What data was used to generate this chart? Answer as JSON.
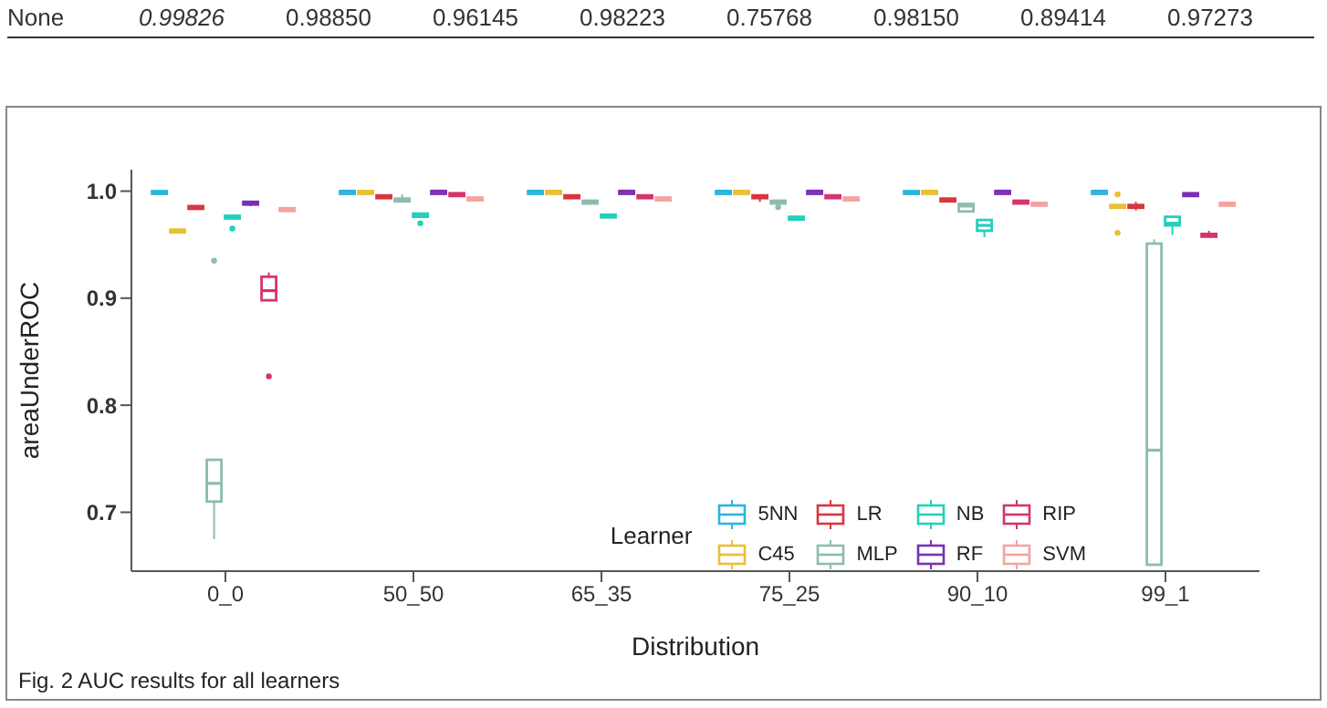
{
  "chart_data": {
    "type": "box",
    "xlabel": "Distribution",
    "ylabel": "areaUnderROC",
    "legend_title": "Learner",
    "legend": "bottom right",
    "grid": false,
    "categories": [
      "0_0",
      "50_50",
      "65_35",
      "75_25",
      "90_10",
      "99_1"
    ],
    "ylim": [
      0.645,
      1.02
    ],
    "yticks": [
      0.7,
      0.8,
      0.9,
      {
        "value": 1,
        "label": "1.0"
      }
    ],
    "annotations": [
      "None",
      "0.99826",
      "0.98850",
      "0.96145",
      "0.98223",
      "0.75768",
      "0.98150",
      "0.89414",
      "0.97273",
      "Fig. 2 AUC results for all learners"
    ],
    "series": [
      {
        "name": "5NN",
        "color": "#2bb6dc",
        "boxes": [
          {
            "low": 0.997,
            "q1": 0.998,
            "median": 0.999,
            "q3": 1.0,
            "high": 1.0
          },
          {
            "low": 0.998,
            "q1": 0.999,
            "median": 1.0,
            "q3": 1.0,
            "high": 1.0
          },
          {
            "low": 0.998,
            "q1": 0.999,
            "median": 1.0,
            "q3": 1.0,
            "high": 1.0
          },
          {
            "low": 0.998,
            "q1": 0.999,
            "median": 1.0,
            "q3": 1.0,
            "high": 1.0
          },
          {
            "low": 0.997,
            "q1": 0.998,
            "median": 0.999,
            "q3": 1.0,
            "high": 1.0
          },
          {
            "low": 0.997,
            "q1": 0.999,
            "median": 1.0,
            "q3": 1.0,
            "high": 1.0
          }
        ]
      },
      {
        "name": "C45",
        "color": "#e8c034",
        "boxes": [
          {
            "low": 0.961,
            "q1": 0.962,
            "median": 0.963,
            "q3": 0.964,
            "high": 0.965
          },
          {
            "low": 0.997,
            "q1": 0.998,
            "median": 0.999,
            "q3": 1.0,
            "high": 1.0
          },
          {
            "low": 0.998,
            "q1": 0.999,
            "median": 1.0,
            "q3": 1.0,
            "high": 1.0
          },
          {
            "low": 0.998,
            "q1": 0.999,
            "median": 1.0,
            "q3": 1.0,
            "high": 1.0
          },
          {
            "low": 0.998,
            "q1": 0.999,
            "median": 1.0,
            "q3": 1.0,
            "high": 1.0
          },
          {
            "low": 0.985,
            "q1": 0.985,
            "median": 0.986,
            "q3": 0.987,
            "high": 0.988,
            "outliers": [
              0.997,
              0.961
            ]
          }
        ]
      },
      {
        "name": "LR",
        "color": "#d9363e",
        "boxes": [
          {
            "low": 0.983,
            "q1": 0.984,
            "median": 0.985,
            "q3": 0.986,
            "high": 0.986
          },
          {
            "low": 0.994,
            "q1": 0.994,
            "median": 0.995,
            "q3": 0.996,
            "high": 0.996
          },
          {
            "low": 0.993,
            "q1": 0.994,
            "median": 0.995,
            "q3": 0.996,
            "high": 0.996
          },
          {
            "low": 0.99,
            "q1": 0.994,
            "median": 0.995,
            "q3": 0.996,
            "high": 0.996
          },
          {
            "low": 0.991,
            "q1": 0.992,
            "median": 0.992,
            "q3": 0.993,
            "high": 0.994
          },
          {
            "low": 0.982,
            "q1": 0.985,
            "median": 0.986,
            "q3": 0.987,
            "high": 0.99
          }
        ]
      },
      {
        "name": "MLP",
        "color": "#8dbcae",
        "boxes": [
          {
            "low": 0.675,
            "q1": 0.71,
            "median": 0.727,
            "q3": 0.749,
            "high": 0.749,
            "outliers": [
              0.935
            ]
          },
          {
            "low": 0.99,
            "q1": 0.991,
            "median": 0.992,
            "q3": 0.993,
            "high": 0.997
          },
          {
            "low": 0.989,
            "q1": 0.99,
            "median": 0.99,
            "q3": 0.991,
            "high": 0.992
          },
          {
            "low": 0.989,
            "q1": 0.99,
            "median": 0.99,
            "q3": 0.991,
            "high": 0.992,
            "outliers": [
              0.985
            ]
          },
          {
            "low": 0.98,
            "q1": 0.981,
            "median": 0.986,
            "q3": 0.988,
            "high": 0.989
          },
          {
            "low": 0.651,
            "q1": 0.651,
            "median": 0.758,
            "q3": 0.951,
            "high": 0.955
          }
        ]
      },
      {
        "name": "NB",
        "color": "#22d0bc",
        "boxes": [
          {
            "low": 0.975,
            "q1": 0.976,
            "median": 0.976,
            "q3": 0.977,
            "high": 0.978,
            "outliers": [
              0.965
            ]
          },
          {
            "low": 0.975,
            "q1": 0.976,
            "median": 0.978,
            "q3": 0.979,
            "high": 0.98,
            "outliers": [
              0.97
            ]
          },
          {
            "low": 0.975,
            "q1": 0.976,
            "median": 0.977,
            "q3": 0.978,
            "high": 0.979
          },
          {
            "low": 0.973,
            "q1": 0.974,
            "median": 0.975,
            "q3": 0.976,
            "high": 0.977
          },
          {
            "low": 0.957,
            "q1": 0.963,
            "median": 0.968,
            "q3": 0.973,
            "high": 0.973
          },
          {
            "low": 0.959,
            "q1": 0.968,
            "median": 0.97,
            "q3": 0.976,
            "high": 0.976
          }
        ]
      },
      {
        "name": "RF",
        "color": "#7b2fb5",
        "boxes": [
          {
            "low": 0.986,
            "q1": 0.988,
            "median": 0.989,
            "q3": 0.99,
            "high": 0.99
          },
          {
            "low": 0.999,
            "q1": 0.999,
            "median": 1.0,
            "q3": 1.0,
            "high": 1.0
          },
          {
            "low": 0.999,
            "q1": 0.999,
            "median": 1.0,
            "q3": 1.0,
            "high": 1.0
          },
          {
            "low": 0.999,
            "q1": 0.999,
            "median": 1.0,
            "q3": 1.0,
            "high": 1.0
          },
          {
            "low": 0.999,
            "q1": 0.999,
            "median": 1.0,
            "q3": 1.0,
            "high": 1.0
          },
          {
            "low": 0.996,
            "q1": 0.997,
            "median": 0.997,
            "q3": 0.998,
            "high": 0.998
          }
        ]
      },
      {
        "name": "RIP",
        "color": "#d6336f",
        "boxes": [
          {
            "low": 0.898,
            "q1": 0.898,
            "median": 0.907,
            "q3": 0.92,
            "high": 0.924,
            "outliers": [
              0.827
            ]
          },
          {
            "low": 0.996,
            "q1": 0.997,
            "median": 0.997,
            "q3": 0.998,
            "high": 0.998
          },
          {
            "low": 0.994,
            "q1": 0.995,
            "median": 0.995,
            "q3": 0.996,
            "high": 0.996
          },
          {
            "low": 0.994,
            "q1": 0.995,
            "median": 0.995,
            "q3": 0.996,
            "high": 0.996
          },
          {
            "low": 0.989,
            "q1": 0.99,
            "median": 0.99,
            "q3": 0.991,
            "high": 0.991
          },
          {
            "low": 0.957,
            "q1": 0.958,
            "median": 0.959,
            "q3": 0.96,
            "high": 0.963
          }
        ]
      },
      {
        "name": "SVM",
        "color": "#f4a3a0",
        "boxes": [
          {
            "low": 0.982,
            "q1": 0.982,
            "median": 0.983,
            "q3": 0.984,
            "high": 0.985
          },
          {
            "low": 0.992,
            "q1": 0.993,
            "median": 0.993,
            "q3": 0.994,
            "high": 0.994
          },
          {
            "low": 0.992,
            "q1": 0.993,
            "median": 0.993,
            "q3": 0.994,
            "high": 0.994
          },
          {
            "low": 0.992,
            "q1": 0.993,
            "median": 0.993,
            "q3": 0.994,
            "high": 0.994
          },
          {
            "low": 0.987,
            "q1": 0.988,
            "median": 0.988,
            "q3": 0.989,
            "high": 0.989
          },
          {
            "low": 0.987,
            "q1": 0.988,
            "median": 0.988,
            "q3": 0.989,
            "high": 0.989
          }
        ]
      }
    ]
  }
}
